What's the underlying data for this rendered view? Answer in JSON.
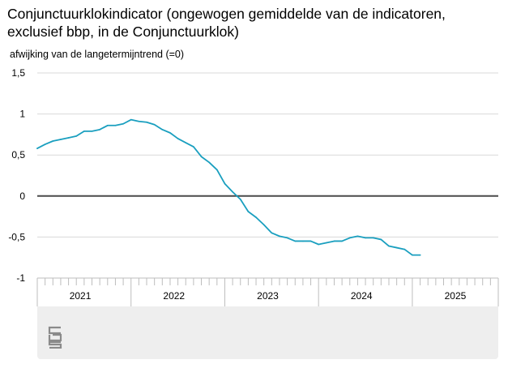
{
  "chart_data": {
    "type": "line",
    "title": "Conjunctuurklokindicator (ongewogen gemiddelde van de indicatoren, exclusief bbp, in de Conjunctuurklok)",
    "ylabel": "afwijking van de langetermijntrend (=0)",
    "ylim": [
      -1,
      1.5
    ],
    "yticks": [
      1.5,
      1,
      0.5,
      0,
      -0.5,
      -1
    ],
    "ytick_labels": [
      "1,5",
      "1",
      "0,5",
      "0",
      "-0,5",
      "-1"
    ],
    "year_labels": [
      "2021",
      "2022",
      "2023",
      "2024",
      "2025"
    ],
    "x_start": "2021-01",
    "x_end": "2025-12",
    "reference_line": 0,
    "grid": true,
    "series": [
      {
        "color": "#1a9fbf",
        "points": [
          [
            "2021-01",
            0.58
          ],
          [
            "2021-02",
            0.63
          ],
          [
            "2021-03",
            0.67
          ],
          [
            "2021-04",
            0.69
          ],
          [
            "2021-05",
            0.71
          ],
          [
            "2021-06",
            0.73
          ],
          [
            "2021-07",
            0.79
          ],
          [
            "2021-08",
            0.79
          ],
          [
            "2021-09",
            0.81
          ],
          [
            "2021-10",
            0.86
          ],
          [
            "2021-11",
            0.86
          ],
          [
            "2021-12",
            0.88
          ],
          [
            "2022-01",
            0.93
          ],
          [
            "2022-02",
            0.91
          ],
          [
            "2022-03",
            0.9
          ],
          [
            "2022-04",
            0.87
          ],
          [
            "2022-05",
            0.81
          ],
          [
            "2022-06",
            0.77
          ],
          [
            "2022-07",
            0.7
          ],
          [
            "2022-08",
            0.65
          ],
          [
            "2022-09",
            0.6
          ],
          [
            "2022-10",
            0.48
          ],
          [
            "2022-11",
            0.41
          ],
          [
            "2022-12",
            0.32
          ],
          [
            "2023-01",
            0.15
          ],
          [
            "2023-02",
            0.05
          ],
          [
            "2023-03",
            -0.04
          ],
          [
            "2023-04",
            -0.19
          ],
          [
            "2023-05",
            -0.26
          ],
          [
            "2023-06",
            -0.35
          ],
          [
            "2023-07",
            -0.45
          ],
          [
            "2023-08",
            -0.49
          ],
          [
            "2023-09",
            -0.51
          ],
          [
            "2023-10",
            -0.55
          ],
          [
            "2023-11",
            -0.55
          ],
          [
            "2023-12",
            -0.55
          ],
          [
            "2024-01",
            -0.59
          ],
          [
            "2024-02",
            -0.57
          ],
          [
            "2024-03",
            -0.55
          ],
          [
            "2024-04",
            -0.55
          ],
          [
            "2024-05",
            -0.51
          ],
          [
            "2024-06",
            -0.49
          ],
          [
            "2024-07",
            -0.51
          ],
          [
            "2024-08",
            -0.51
          ],
          [
            "2024-09",
            -0.53
          ],
          [
            "2024-10",
            -0.61
          ],
          [
            "2024-11",
            -0.63
          ],
          [
            "2024-12",
            -0.65
          ],
          [
            "2025-01",
            -0.72
          ],
          [
            "2025-02",
            -0.72
          ]
        ]
      }
    ]
  }
}
